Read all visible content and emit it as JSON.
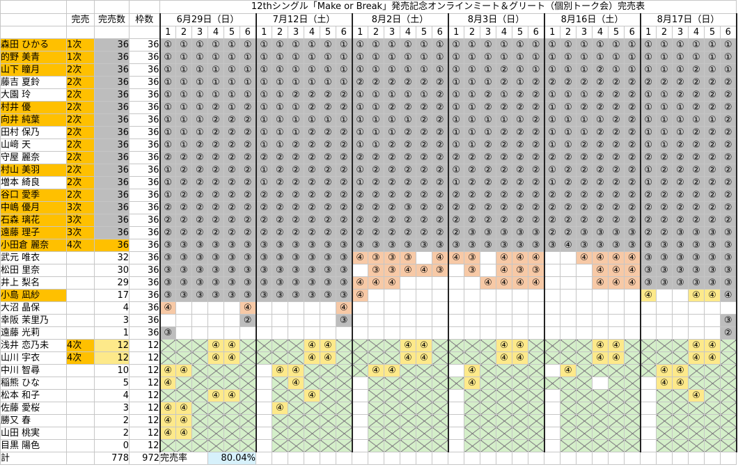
{
  "title": "12thシングル「Make or Break」発売記念オンラインミート＆グリート（個別トーク会）完売表",
  "headers": {
    "kanbai": "完売",
    "kanbaisu": "完売数",
    "wakusu": "枠数"
  },
  "dates": [
    "6月29日（日）",
    "7月12日（土）",
    "8月2日（土）",
    "8月3日（日）",
    "8月16日（土）",
    "8月17日（日）"
  ],
  "slots": [
    "1",
    "2",
    "3",
    "4",
    "5",
    "6"
  ],
  "members": [
    {
      "name": "森田 ひかる",
      "status": "1次",
      "sold": "36",
      "cap": "36",
      "hl": "org",
      "ns": "G",
      "cells": [
        "111111",
        "111111",
        "111111",
        "111111",
        "111111",
        "111111"
      ]
    },
    {
      "name": "的野 美青",
      "status": "1次",
      "sold": "36",
      "cap": "36",
      "hl": "org",
      "ns": "G",
      "cells": [
        "111111",
        "111111",
        "111111",
        "111111",
        "111111",
        "111111"
      ]
    },
    {
      "name": "山下 瞳月",
      "status": "2次",
      "sold": "36",
      "cap": "36",
      "hl": "org",
      "ns": "G",
      "cells": [
        "111111",
        "111111",
        "111111",
        "111211",
        "111211",
        "111211"
      ]
    },
    {
      "name": "藤吉 夏鈴",
      "status": "2次",
      "sold": "36",
      "cap": "36",
      "hl": "",
      "ns": "G",
      "cells": [
        "111111",
        "111111",
        "222222",
        "111212",
        "222222",
        "222222"
      ]
    },
    {
      "name": "大園 玲",
      "status": "2次",
      "sold": "36",
      "cap": "36",
      "hl": "",
      "ns": "G",
      "cells": [
        "111111",
        "112222",
        "111112",
        "112122",
        "111222",
        "112222"
      ]
    },
    {
      "name": "村井 優",
      "status": "2次",
      "sold": "36",
      "cap": "36",
      "hl": "org",
      "ns": "G",
      "cells": [
        "111212",
        "111222",
        "112222",
        "112222",
        "112222",
        "111222"
      ]
    },
    {
      "name": "向井 純葉",
      "status": "2次",
      "sold": "36",
      "cap": "36",
      "hl": "org",
      "ns": "G",
      "cells": [
        "111222",
        "111111",
        "111122",
        "111112",
        "111122",
        "111112"
      ]
    },
    {
      "name": "田村 保乃",
      "status": "2次",
      "sold": "36",
      "cap": "36",
      "hl": "",
      "ns": "G",
      "cells": [
        "111222",
        "111222",
        "111222",
        "111222",
        "111222",
        "111222"
      ]
    },
    {
      "name": "山﨑 天",
      "status": "2次",
      "sold": "36",
      "cap": "36",
      "hl": "",
      "ns": "G",
      "cells": [
        "112222",
        "112222",
        "112222",
        "112222",
        "112222",
        "112222"
      ]
    },
    {
      "name": "守屋 麗奈",
      "status": "2次",
      "sold": "36",
      "cap": "36",
      "hl": "",
      "ns": "G",
      "cells": [
        "222222",
        "222222",
        "222222",
        "222222",
        "222222",
        "222222"
      ]
    },
    {
      "name": "村山 美羽",
      "status": "2次",
      "sold": "36",
      "cap": "36",
      "hl": "org",
      "ns": "G",
      "cells": [
        "122222",
        "122222",
        "122222",
        "122222",
        "122222",
        "122222"
      ]
    },
    {
      "name": "増本 綺良",
      "status": "2次",
      "sold": "36",
      "cap": "36",
      "hl": "",
      "ns": "G",
      "cells": [
        "122222",
        "122222",
        "122222",
        "122222",
        "122222",
        "122222"
      ]
    },
    {
      "name": "谷口 愛季",
      "status": "2次",
      "sold": "36",
      "cap": "36",
      "hl": "org",
      "ns": "G",
      "cells": [
        "122222",
        "222222",
        "222222",
        "222222",
        "222222",
        "222222"
      ]
    },
    {
      "name": "中嶋 優月",
      "status": "3次",
      "sold": "36",
      "cap": "36",
      "hl": "org",
      "ns": "G",
      "cells": [
        "222222",
        "222222",
        "222322",
        "222222",
        "222222",
        "222222"
      ]
    },
    {
      "name": "石森 璃花",
      "status": "3次",
      "sold": "36",
      "cap": "36",
      "hl": "org",
      "ns": "G",
      "cells": [
        "222222",
        "222222",
        "222222",
        "222222",
        "222222",
        "222222"
      ]
    },
    {
      "name": "遠藤 理子",
      "status": "3次",
      "sold": "36",
      "cap": "36",
      "hl": "org",
      "ns": "G",
      "cells": [
        "222222",
        "222222",
        "222222",
        "233333",
        "223333",
        "223333"
      ]
    },
    {
      "name": "小田倉 麗奈",
      "status": "4次",
      "sold": "36",
      "cap": "36",
      "hl": "org",
      "ns": "O",
      "cells": [
        "333333",
        "333333",
        "333333",
        "333333",
        "343333",
        "333333"
      ]
    },
    {
      "name": "武元 唯衣",
      "status": "",
      "sold": "32",
      "cap": "36",
      "hl": "",
      "ns": "",
      "cells": [
        "333333",
        "333333",
        "433344",
        "433444",
        "444444",
        "333333"
      ]
    },
    {
      "name": "松田 里奈",
      "status": "",
      "sold": "30",
      "cap": "36",
      "hl": "",
      "ns": "",
      "cells": [
        "333333",
        "333333",
        "333443",
        "333433",
        "444444",
        "333333"
      ]
    },
    {
      "name": "井上 梨名",
      "status": "",
      "sold": "29",
      "cap": "36",
      "hl": "",
      "ns": "",
      "cells": [
        "333333",
        "333333",
        "444444",
        "444444",
        "444444",
        "333333"
      ]
    },
    {
      "name": "小島 凪紗",
      "status": "",
      "sold": "17",
      "cap": "36",
      "hl": "org",
      "ns": "",
      "cells": [
        "333333",
        "333333",
        "444444",
        "444444",
        "444444",
        "444444"
      ]
    },
    {
      "name": "大沼 晶保",
      "status": "",
      "sold": "4",
      "cap": "36",
      "hl": "",
      "ns": "",
      "cells": [
        "444444",
        "444444",
        "444444",
        "444444",
        "444444",
        "444442"
      ]
    },
    {
      "name": "幸阪 茉里乃",
      "status": "",
      "sold": "3",
      "cap": "36",
      "hl": "",
      "ns": "",
      "cells": [
        "444444",
        "444444",
        "444444",
        "444444",
        "444444",
        "444443"
      ]
    },
    {
      "name": "遠藤 光莉",
      "status": "",
      "sold": "1",
      "cap": "36",
      "hl": "",
      "ns": "",
      "cells": [
        "344444",
        "444444",
        "444444",
        "444444",
        "444444",
        "444444"
      ]
    },
    {
      "name": "浅井 恋乃未",
      "status": "4次",
      "sold": "12",
      "cap": "12",
      "hl": "",
      "ns": "Y",
      "cells": [
        "444444",
        "444444",
        "444444",
        "444444",
        "444444",
        "444444"
      ]
    },
    {
      "name": "山川 宇衣",
      "status": "4次",
      "sold": "12",
      "cap": "12",
      "hl": "",
      "ns": "Y",
      "cells": [
        "444444",
        "444444",
        "444444",
        "444444",
        "444444",
        "444444"
      ]
    },
    {
      "name": "中川 智尋",
      "status": "",
      "sold": "10",
      "cap": "12",
      "hl": "",
      "ns": "",
      "cells": [
        "444444",
        "444444",
        "444444",
        "444444",
        "444444",
        "444444"
      ]
    },
    {
      "name": "稲熊 ひな",
      "status": "",
      "sold": "5",
      "cap": "12",
      "hl": "",
      "ns": "",
      "cells": [
        "444444",
        "444444",
        "444444",
        "444444",
        "444444",
        "444444"
      ]
    },
    {
      "name": "松本 和子",
      "status": "",
      "sold": "4",
      "cap": "12",
      "hl": "",
      "ns": "",
      "cells": [
        "444444",
        "444444",
        "444444",
        "444444",
        "444444",
        "444444"
      ]
    },
    {
      "name": "佐藤 愛桜",
      "status": "",
      "sold": "3",
      "cap": "12",
      "hl": "",
      "ns": "",
      "cells": [
        "444444",
        "444444",
        "444444",
        "444444",
        "444444",
        "444444"
      ]
    },
    {
      "name": "勝又 春",
      "status": "",
      "sold": "2",
      "cap": "12",
      "hl": "",
      "ns": "",
      "cells": [
        "444444",
        "444444",
        "444444",
        "444444",
        "444444",
        "444444"
      ]
    },
    {
      "name": "山田 桃実",
      "status": "",
      "sold": "2",
      "cap": "12",
      "hl": "",
      "ns": "",
      "cells": [
        "444444",
        "444444",
        "444444",
        "444444",
        "444444",
        "444444"
      ]
    },
    {
      "name": "目黒 陽色",
      "status": "",
      "sold": "0",
      "cap": "12",
      "hl": "",
      "ns": "",
      "cells": [
        "444444",
        "444444",
        "444444",
        "444444",
        "444444",
        "444444"
      ]
    }
  ],
  "footer": {
    "label": "計",
    "sold_total": "778",
    "cap_total": "972",
    "rate_label": "完売率",
    "rate_value": "80.04%"
  }
}
